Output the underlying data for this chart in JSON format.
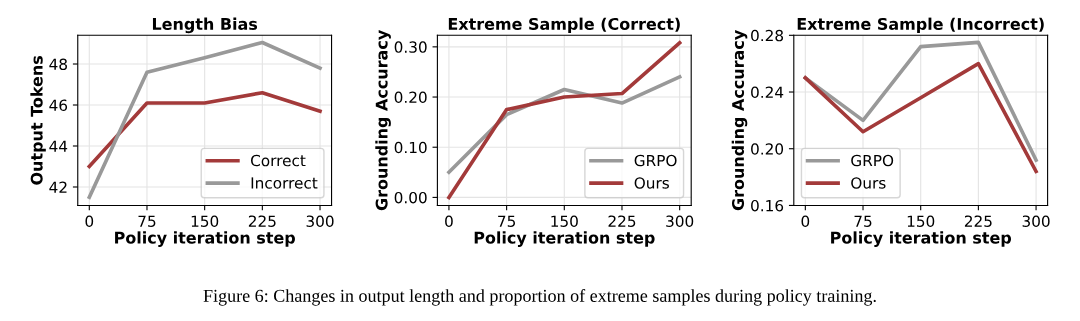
{
  "chart_data": [
    {
      "type": "line",
      "title": "Length Bias",
      "xlabel": "Policy iteration step",
      "ylabel": "Output Tokens",
      "x": [
        0,
        75,
        150,
        225,
        300
      ],
      "xlim": [
        -15,
        315
      ],
      "xticks": [
        0,
        75,
        150,
        225,
        300
      ],
      "ylim": [
        41.1,
        49.4
      ],
      "yticks": [
        42,
        44,
        46,
        48
      ],
      "grid": true,
      "legend": "bottom right",
      "series": [
        {
          "name": "Correct",
          "color": "#a33a3a",
          "values": [
            43.0,
            46.1,
            46.1,
            46.6,
            45.7
          ]
        },
        {
          "name": "Incorrect",
          "color": "#999999",
          "values": [
            41.5,
            47.6,
            48.3,
            49.05,
            47.8
          ]
        }
      ]
    },
    {
      "type": "line",
      "title": "Extreme Sample (Correct)",
      "xlabel": "Policy iteration step",
      "ylabel": "Grounding Accuracy",
      "x": [
        0,
        75,
        150,
        225,
        300
      ],
      "xlim": [
        -15,
        315
      ],
      "xticks": [
        0,
        75,
        150,
        225,
        300
      ],
      "ylim": [
        -0.016,
        0.323
      ],
      "yticks": [
        {
          "value": 0,
          "label": "0.00"
        },
        {
          "value": 0.1,
          "label": "0.10"
        },
        {
          "value": 0.2,
          "label": "0.20"
        },
        {
          "value": 0.3,
          "label": "0.30"
        }
      ],
      "grid": true,
      "legend": "bottom right",
      "series": [
        {
          "name": "GRPO",
          "color": "#999999",
          "values": [
            0.05,
            0.165,
            0.215,
            0.188,
            0.24
          ]
        },
        {
          "name": "Ours",
          "color": "#a33a3a",
          "values": [
            0.0,
            0.175,
            0.2,
            0.207,
            0.308
          ]
        }
      ]
    },
    {
      "type": "line",
      "title": "Extreme Sample (Incorrect)",
      "xlabel": "Policy iteration step",
      "ylabel": "Grounding Accuracy",
      "x": [
        0,
        75,
        150,
        225,
        300
      ],
      "xlim": [
        -15,
        315
      ],
      "xticks": [
        0,
        75,
        150,
        225,
        300
      ],
      "ylim": [
        0.16,
        0.28
      ],
      "yticks": [
        {
          "value": 0.16,
          "label": "0.16"
        },
        {
          "value": 0.2,
          "label": "0.20"
        },
        {
          "value": 0.24,
          "label": "0.24"
        },
        {
          "value": 0.28,
          "label": "0.28"
        }
      ],
      "grid": true,
      "legend": "bottom left",
      "annotations": [
        "Figure 6: Changes in output length and proportion of extreme samples during policy training."
      ],
      "series": [
        {
          "name": "GRPO",
          "color": "#999999",
          "values": [
            0.25,
            0.22,
            0.272,
            0.275,
            0.192
          ]
        },
        {
          "name": "Ours",
          "color": "#a33a3a",
          "values": [
            0.25,
            0.212,
            0.236,
            0.26,
            0.184
          ]
        }
      ]
    }
  ]
}
